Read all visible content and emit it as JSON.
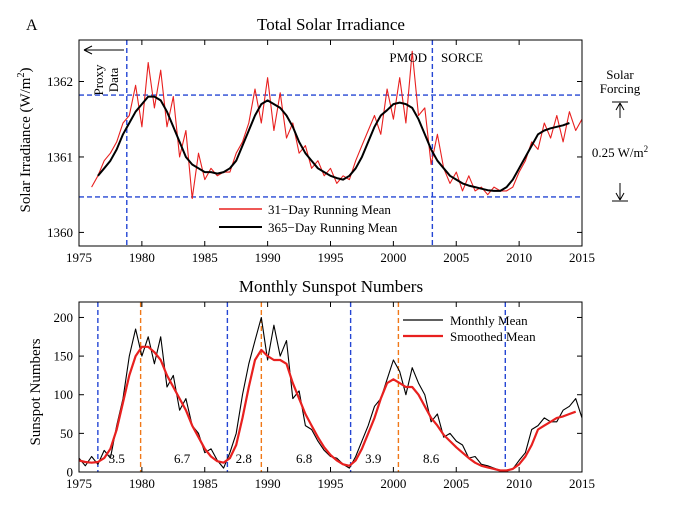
{
  "panel_label": "A",
  "chart_data": [
    {
      "type": "line",
      "title": "Total Solar Irradiance",
      "xlabel": "",
      "ylabel_main": "Solar Irradiance (W/m",
      "ylabel_sup": "2",
      "ylabel_tail": ")",
      "xlim": [
        1975,
        2015
      ],
      "ylim": [
        1359.82,
        1362.55
      ],
      "x_ticks": [
        1975,
        1980,
        1985,
        1990,
        1995,
        2000,
        2005,
        2010,
        2015
      ],
      "y_ticks": [
        1360,
        1361,
        1362
      ],
      "grid": false,
      "legend_position": "bottom-center",
      "series": [
        {
          "name": "31−Day Running Mean",
          "color": "#e8201f",
          "x": [
            1976.0,
            1976.5,
            1977.0,
            1977.5,
            1978.0,
            1978.5,
            1979.0,
            1979.5,
            1980.0,
            1980.5,
            1981.0,
            1981.5,
            1982.0,
            1982.5,
            1983.0,
            1983.5,
            1984.0,
            1984.5,
            1985.0,
            1985.5,
            1986.0,
            1986.5,
            1987.0,
            1987.5,
            1988.0,
            1988.5,
            1989.0,
            1989.5,
            1990.0,
            1990.5,
            1991.0,
            1991.5,
            1992.0,
            1992.5,
            1993.0,
            1993.5,
            1994.0,
            1994.5,
            1995.0,
            1995.5,
            1996.0,
            1996.5,
            1997.0,
            1997.5,
            1998.0,
            1998.5,
            1999.0,
            1999.5,
            2000.0,
            2000.5,
            2001.0,
            2001.5,
            2002.0,
            2002.5,
            2003.0,
            2003.5,
            2004.0,
            2004.5,
            2005.0,
            2005.5,
            2006.0,
            2006.5,
            2007.0,
            2007.5,
            2008.0,
            2008.5,
            2009.0,
            2009.5,
            2010.0,
            2010.5,
            2011.0,
            2011.5,
            2012.0,
            2012.5,
            2013.0,
            2013.5,
            2014.0,
            2014.5,
            2015.0
          ],
          "values": [
            1360.6,
            1360.75,
            1360.95,
            1361.05,
            1361.2,
            1361.45,
            1361.55,
            1361.95,
            1361.4,
            1362.25,
            1361.65,
            1362.15,
            1361.4,
            1361.8,
            1361.0,
            1361.35,
            1360.45,
            1361.05,
            1360.7,
            1360.85,
            1360.75,
            1360.8,
            1360.8,
            1361.05,
            1361.2,
            1361.45,
            1361.9,
            1361.45,
            1362.05,
            1361.35,
            1361.85,
            1361.25,
            1361.45,
            1361.05,
            1361.15,
            1360.85,
            1360.95,
            1360.75,
            1360.85,
            1360.65,
            1360.75,
            1360.7,
            1360.95,
            1361.15,
            1361.35,
            1361.55,
            1361.3,
            1361.9,
            1361.5,
            1362.05,
            1361.45,
            1362.4,
            1361.55,
            1361.65,
            1360.9,
            1361.3,
            1360.85,
            1360.65,
            1360.8,
            1360.55,
            1360.75,
            1360.55,
            1360.6,
            1360.5,
            1360.6,
            1360.55,
            1360.55,
            1360.6,
            1360.8,
            1360.95,
            1361.2,
            1361.1,
            1361.45,
            1361.25,
            1361.55,
            1361.2,
            1361.6,
            1361.35,
            1361.5
          ]
        },
        {
          "name": "365−Day Running Mean",
          "color": "#000000",
          "x": [
            1976.5,
            1977.0,
            1977.5,
            1978.0,
            1978.5,
            1979.0,
            1979.5,
            1980.0,
            1980.5,
            1981.0,
            1981.5,
            1982.0,
            1982.5,
            1983.0,
            1983.5,
            1984.0,
            1984.5,
            1985.0,
            1985.5,
            1986.0,
            1986.5,
            1987.0,
            1987.5,
            1988.0,
            1988.5,
            1989.0,
            1989.5,
            1990.0,
            1990.5,
            1991.0,
            1991.5,
            1992.0,
            1992.5,
            1993.0,
            1993.5,
            1994.0,
            1994.5,
            1995.0,
            1995.5,
            1996.0,
            1996.5,
            1997.0,
            1997.5,
            1998.0,
            1998.5,
            1999.0,
            1999.5,
            2000.0,
            2000.5,
            2001.0,
            2001.5,
            2002.0,
            2002.5,
            2003.0,
            2003.5,
            2004.0,
            2004.5,
            2005.0,
            2005.5,
            2006.0,
            2006.5,
            2007.0,
            2007.5,
            2008.0,
            2008.5,
            2009.0,
            2009.5,
            2010.0,
            2010.5,
            2011.0,
            2011.5,
            2012.0,
            2012.5,
            2013.0,
            2013.5,
            2014.0
          ],
          "values": [
            1360.75,
            1360.85,
            1360.95,
            1361.1,
            1361.3,
            1361.45,
            1361.6,
            1361.7,
            1361.8,
            1361.8,
            1361.75,
            1361.6,
            1361.4,
            1361.2,
            1361.0,
            1360.9,
            1360.85,
            1360.8,
            1360.8,
            1360.78,
            1360.8,
            1360.85,
            1360.95,
            1361.15,
            1361.35,
            1361.55,
            1361.7,
            1361.75,
            1361.7,
            1361.65,
            1361.55,
            1361.4,
            1361.2,
            1361.05,
            1360.95,
            1360.85,
            1360.8,
            1360.75,
            1360.72,
            1360.7,
            1360.75,
            1360.85,
            1361.0,
            1361.2,
            1361.4,
            1361.55,
            1361.62,
            1361.7,
            1361.72,
            1361.7,
            1361.65,
            1361.5,
            1361.3,
            1361.1,
            1360.95,
            1360.85,
            1360.75,
            1360.7,
            1360.65,
            1360.62,
            1360.6,
            1360.58,
            1360.56,
            1360.55,
            1360.55,
            1360.6,
            1360.7,
            1360.85,
            1361.0,
            1361.15,
            1361.3,
            1361.35,
            1361.38,
            1361.4,
            1361.42,
            1361.45
          ]
        }
      ],
      "reference_lines": {
        "horizontal": [
          1361.82,
          1360.47
        ],
        "vertical": [
          1978.8,
          2003.1
        ]
      },
      "annotations": {
        "proxy_line1": "Proxy",
        "proxy_line2": "Data",
        "pmod": "PMOD",
        "sorce": "SORCE",
        "forcing_line1": "Solar",
        "forcing_line2": "Forcing",
        "forcing_value_main": "0.25 W/m",
        "forcing_value_sup": "2"
      }
    },
    {
      "type": "line",
      "title": "Monthly Sunspot Numbers",
      "xlabel": "",
      "ylabel": "Sunspot Numbers",
      "xlim": [
        1975,
        2015
      ],
      "ylim": [
        0,
        220
      ],
      "x_ticks": [
        1975,
        1980,
        1985,
        1990,
        1995,
        2000,
        2005,
        2010,
        2015
      ],
      "y_ticks": [
        0,
        50,
        100,
        150,
        200
      ],
      "grid": false,
      "legend_position": "top-right",
      "series": [
        {
          "name": "Monthly Mean",
          "color": "#000000",
          "x": [
            1975.0,
            1975.5,
            1976.0,
            1976.5,
            1977.0,
            1977.5,
            1978.0,
            1978.5,
            1979.0,
            1979.5,
            1980.0,
            1980.5,
            1981.0,
            1981.5,
            1982.0,
            1982.5,
            1983.0,
            1983.5,
            1984.0,
            1984.5,
            1985.0,
            1985.5,
            1986.0,
            1986.5,
            1987.0,
            1987.5,
            1988.0,
            1988.5,
            1989.0,
            1989.5,
            1990.0,
            1990.5,
            1991.0,
            1991.5,
            1992.0,
            1992.5,
            1993.0,
            1993.5,
            1994.0,
            1994.5,
            1995.0,
            1995.5,
            1996.0,
            1996.5,
            1997.0,
            1997.5,
            1998.0,
            1998.5,
            1999.0,
            1999.5,
            2000.0,
            2000.5,
            2001.0,
            2001.5,
            2002.0,
            2002.5,
            2003.0,
            2003.5,
            2004.0,
            2004.5,
            2005.0,
            2005.5,
            2006.0,
            2006.5,
            2007.0,
            2007.5,
            2008.0,
            2008.5,
            2009.0,
            2009.5,
            2010.0,
            2010.5,
            2011.0,
            2011.5,
            2012.0,
            2012.5,
            2013.0,
            2013.5,
            2014.0,
            2014.5,
            2015.0
          ],
          "values": [
            18,
            8,
            20,
            10,
            28,
            18,
            60,
            95,
            150,
            185,
            150,
            175,
            140,
            175,
            110,
            125,
            80,
            95,
            60,
            50,
            25,
            30,
            15,
            5,
            25,
            50,
            100,
            140,
            170,
            200,
            145,
            190,
            150,
            170,
            95,
            105,
            60,
            55,
            40,
            28,
            20,
            18,
            10,
            5,
            20,
            40,
            60,
            85,
            95,
            120,
            145,
            130,
            100,
            135,
            115,
            100,
            65,
            75,
            45,
            50,
            40,
            35,
            18,
            20,
            10,
            8,
            5,
            2,
            1,
            4,
            15,
            25,
            55,
            60,
            70,
            65,
            65,
            80,
            85,
            95,
            70
          ]
        },
        {
          "name": "Smoothed Mean",
          "color": "#e8201f",
          "x": [
            1975.0,
            1975.5,
            1976.0,
            1976.5,
            1977.0,
            1977.5,
            1978.0,
            1978.5,
            1979.0,
            1979.5,
            1980.0,
            1980.5,
            1981.0,
            1981.5,
            1982.0,
            1982.5,
            1983.0,
            1983.5,
            1984.0,
            1984.5,
            1985.0,
            1985.5,
            1986.0,
            1986.5,
            1987.0,
            1987.5,
            1988.0,
            1988.5,
            1989.0,
            1989.5,
            1990.0,
            1990.5,
            1991.0,
            1991.5,
            1992.0,
            1992.5,
            1993.0,
            1993.5,
            1994.0,
            1994.5,
            1995.0,
            1995.5,
            1996.0,
            1996.5,
            1997.0,
            1997.5,
            1998.0,
            1998.5,
            1999.0,
            1999.5,
            2000.0,
            2000.5,
            2001.0,
            2001.5,
            2002.0,
            2002.5,
            2003.0,
            2003.5,
            2004.0,
            2004.5,
            2005.0,
            2005.5,
            2006.0,
            2006.5,
            2007.0,
            2007.5,
            2008.0,
            2008.5,
            2009.0,
            2009.5,
            2010.0,
            2010.5,
            2011.0,
            2011.5,
            2012.0,
            2012.5,
            2013.0,
            2013.5,
            2014.0,
            2014.5
          ],
          "values": [
            15,
            13,
            12,
            13,
            18,
            30,
            55,
            90,
            125,
            150,
            162,
            162,
            155,
            145,
            125,
            110,
            95,
            80,
            60,
            45,
            30,
            20,
            14,
            12,
            18,
            35,
            70,
            110,
            145,
            158,
            150,
            145,
            145,
            140,
            115,
            95,
            75,
            60,
            45,
            32,
            22,
            15,
            10,
            8,
            15,
            30,
            50,
            70,
            95,
            115,
            120,
            115,
            110,
            110,
            100,
            85,
            70,
            60,
            48,
            40,
            32,
            25,
            18,
            12,
            8,
            6,
            4,
            2,
            2,
            4,
            10,
            20,
            35,
            55,
            60,
            65,
            70,
            72,
            75,
            78
          ]
        }
      ],
      "reference_lines": {
        "blue_minima": [
          1976.5,
          1986.8,
          1996.6,
          2008.9
        ],
        "orange_maxima": [
          1979.9,
          1989.5,
          2000.4
        ]
      },
      "annotations": {
        "cycle_phases": [
          {
            "text": "3.5",
            "x": 1978.0
          },
          {
            "text": "6.7",
            "x": 1983.2
          },
          {
            "text": "2.8",
            "x": 1988.1
          },
          {
            "text": "6.8",
            "x": 1992.9
          },
          {
            "text": "3.9",
            "x": 1998.4
          },
          {
            "text": "8.6",
            "x": 2003.0
          }
        ]
      }
    }
  ]
}
